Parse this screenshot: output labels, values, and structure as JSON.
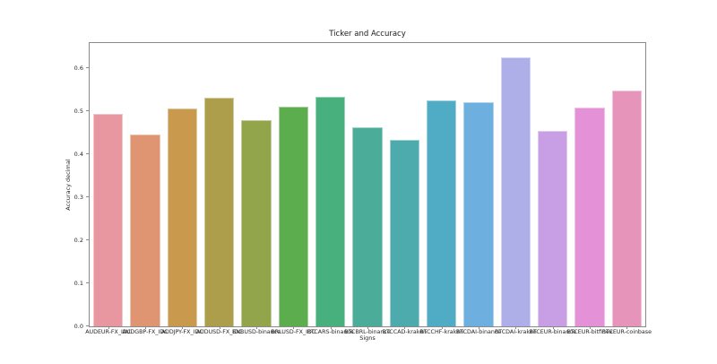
{
  "figure": {
    "title": "Ticker and Accuracy",
    "xlabel": "Signs",
    "ylabel": "Accuracy decimal"
  },
  "chart_data": {
    "type": "bar",
    "title": "Ticker and Accuracy",
    "xlabel": "Signs",
    "ylabel": "Accuracy decimal",
    "categories": [
      "AUDEUR-FX_IDC",
      "AUDGBP-FX_IDC",
      "AUDJPY-FX_IDC",
      "AUDUSD-FX_IDC",
      "BNBUSD-binance",
      "BRLUSD-FX_IDC",
      "BTCARS-binance",
      "BTCBRL-binance",
      "BTCCAD-kraken",
      "BTCCHF-kraken",
      "BTCDAI-binance",
      "BTCDAI-kraken",
      "BTCEUR-binance",
      "BTCEUR-bitfinex",
      "BTCEUR-coinbase"
    ],
    "values": [
      0.493,
      0.445,
      0.505,
      0.53,
      0.479,
      0.51,
      0.533,
      0.463,
      0.433,
      0.525,
      0.52,
      0.625,
      0.455,
      0.508,
      0.548
    ],
    "colors": [
      "#e897a1",
      "#df9571",
      "#c99a4e",
      "#ac9e4b",
      "#93a54b",
      "#5bad4e",
      "#48b07c",
      "#4bad99",
      "#4dabad",
      "#50abc5",
      "#6db0e0",
      "#aeaee8",
      "#c89ee5",
      "#e591d8",
      "#e794bb"
    ],
    "ylim": [
      0,
      0.658
    ],
    "yticks": [
      0.0,
      0.1,
      0.2,
      0.3,
      0.4,
      0.5,
      0.6
    ],
    "ytick_label_format": "one_decimal",
    "bar_width_fraction": 0.8,
    "grid": false,
    "legend_position": "none",
    "spine_color": "#8a8a8a",
    "text_color": "#262626"
  }
}
